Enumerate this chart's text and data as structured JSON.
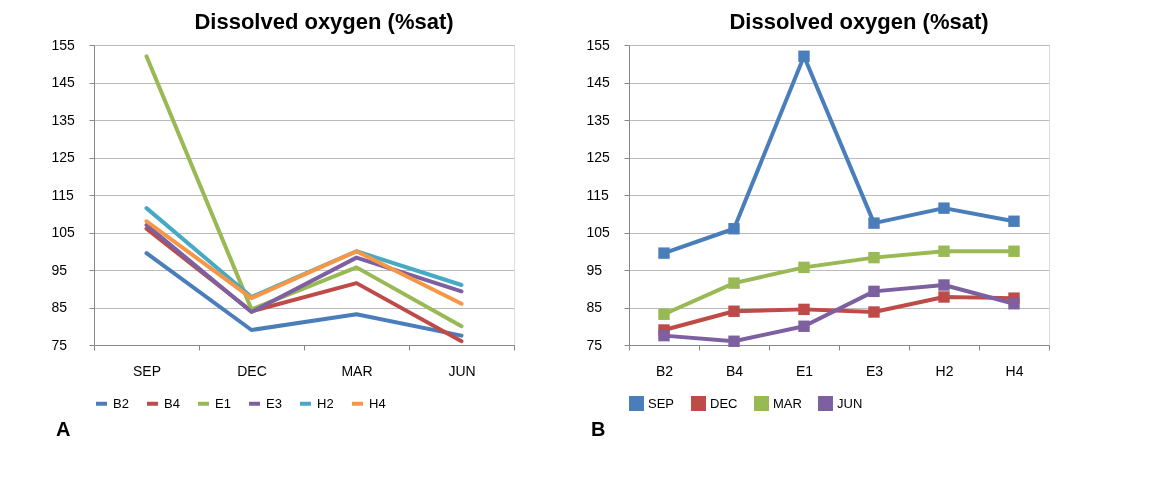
{
  "chart_data": [
    {
      "type": "line",
      "title": "Dissolved oxygen (%sat)",
      "categories": [
        "SEP",
        "DEC",
        "MAR",
        "JUN"
      ],
      "ylim": [
        75,
        155
      ],
      "yticks": [
        75,
        85,
        95,
        105,
        115,
        125,
        135,
        145,
        155
      ],
      "grid": "y",
      "legend": "bottom",
      "marker": "none",
      "line_style": "solid",
      "annotations": [
        "A"
      ],
      "series": [
        {
          "name": "B2",
          "color": "#4a7ebb",
          "values": [
            99.5,
            79,
            83.2,
            77.5
          ]
        },
        {
          "name": "B4",
          "color": "#be4b48",
          "values": [
            106,
            84,
            91.5,
            76
          ]
        },
        {
          "name": "E1",
          "color": "#98b954",
          "values": [
            152,
            84.5,
            95.7,
            80
          ]
        },
        {
          "name": "E3",
          "color": "#7d60a0",
          "values": [
            107,
            83.8,
            98.3,
            89.3
          ]
        },
        {
          "name": "H2",
          "color": "#46aac5",
          "values": [
            111.5,
            87.8,
            100,
            91
          ]
        },
        {
          "name": "H4",
          "color": "#f79646",
          "values": [
            108,
            87.5,
            100,
            86
          ]
        }
      ]
    },
    {
      "type": "line",
      "title": "Dissolved oxygen (%sat)",
      "categories": [
        "B2",
        "B4",
        "E1",
        "E3",
        "H2",
        "H4"
      ],
      "ylim": [
        75,
        155
      ],
      "yticks": [
        75,
        85,
        95,
        105,
        115,
        125,
        135,
        145,
        155
      ],
      "grid": "y",
      "legend": "bottom",
      "marker": "square",
      "line_style": "solid",
      "annotations": [
        "B"
      ],
      "series": [
        {
          "name": "SEP",
          "color": "#4a7ebb",
          "values": [
            99.5,
            106,
            152,
            107.5,
            111.5,
            108
          ]
        },
        {
          "name": "DEC",
          "color": "#be4b48",
          "values": [
            79,
            84,
            84.5,
            83.8,
            87.8,
            87.5
          ]
        },
        {
          "name": "MAR",
          "color": "#98b954",
          "values": [
            83.2,
            91.5,
            95.7,
            98.3,
            100,
            100
          ]
        },
        {
          "name": "JUN",
          "color": "#7d60a0",
          "values": [
            77.5,
            76,
            80,
            89.3,
            91,
            86
          ]
        }
      ]
    }
  ]
}
